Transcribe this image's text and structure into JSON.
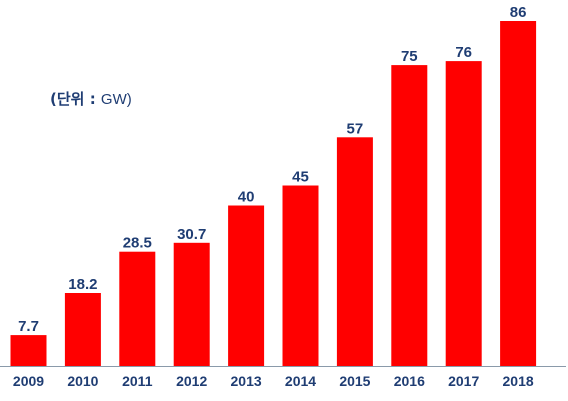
{
  "unit_label": {
    "prefix": "(단위",
    "sep": " : ",
    "value": "GW)"
  },
  "colors": {
    "bar": "#ff0000",
    "label": "#1f3d73",
    "axis": "#8a9aaa"
  },
  "chart_data": {
    "type": "bar",
    "categories": [
      "2009",
      "2010",
      "2011",
      "2012",
      "2013",
      "2014",
      "2015",
      "2016",
      "2017",
      "2018"
    ],
    "values": [
      7.7,
      18.2,
      28.5,
      30.7,
      40,
      45,
      57,
      75,
      76,
      86
    ],
    "value_labels": [
      "7.7",
      "18.2",
      "28.5",
      "30.7",
      "40",
      "45",
      "57",
      "75",
      "76",
      "86"
    ],
    "title": "",
    "xlabel": "",
    "ylabel": "",
    "ylim": [
      0,
      86
    ],
    "grid": false,
    "legend": "none"
  }
}
